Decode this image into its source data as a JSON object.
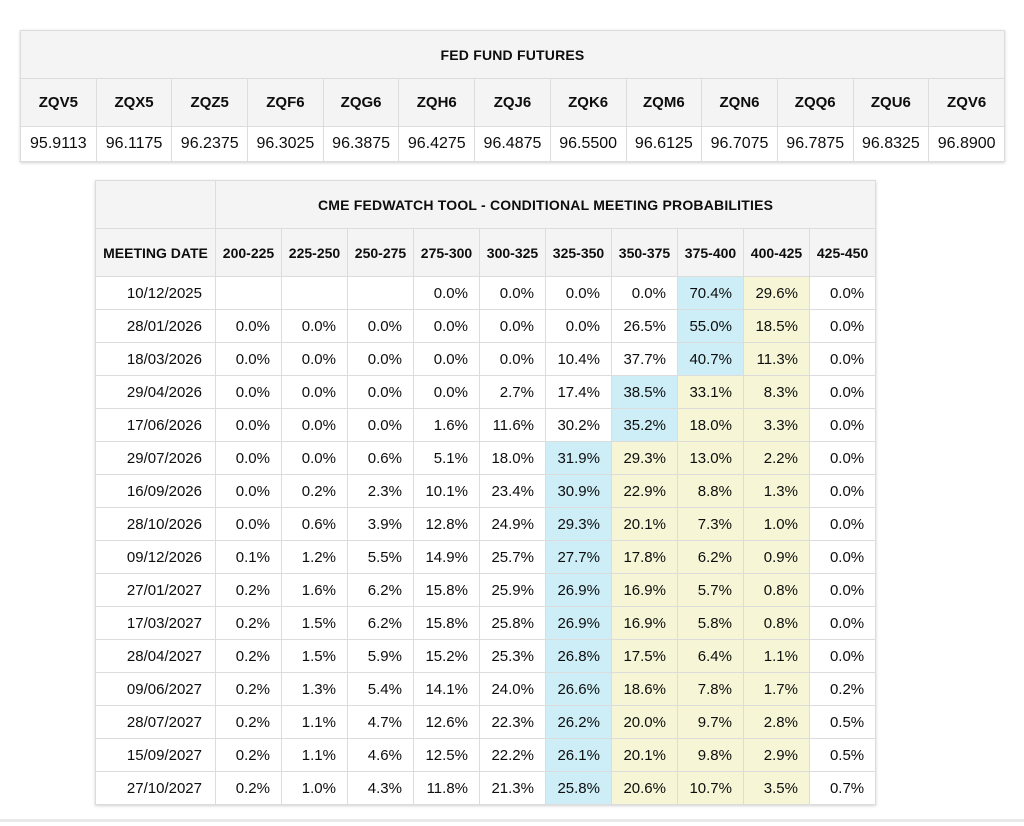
{
  "colors": {
    "header_bg": "#f4f4f5",
    "highlight_blue": "#cdeef7",
    "highlight_yellow": "#f6f6d7",
    "border": "#dcdcdc",
    "divider": "#e9e9ea"
  },
  "futures_table": {
    "title": "FED FUND FUTURES",
    "contracts": [
      {
        "code": "ZQV5",
        "price": "95.9113"
      },
      {
        "code": "ZQX5",
        "price": "96.1175"
      },
      {
        "code": "ZQZ5",
        "price": "96.2375"
      },
      {
        "code": "ZQF6",
        "price": "96.3025"
      },
      {
        "code": "ZQG6",
        "price": "96.3875"
      },
      {
        "code": "ZQH6",
        "price": "96.4275"
      },
      {
        "code": "ZQJ6",
        "price": "96.4875"
      },
      {
        "code": "ZQK6",
        "price": "96.5500"
      },
      {
        "code": "ZQM6",
        "price": "96.6125"
      },
      {
        "code": "ZQN6",
        "price": "96.7075"
      },
      {
        "code": "ZQQ6",
        "price": "96.7875"
      },
      {
        "code": "ZQU6",
        "price": "96.8325"
      },
      {
        "code": "ZQV6",
        "price": "96.8900"
      }
    ]
  },
  "fedwatch_table": {
    "title": "CME FEDWATCH TOOL - CONDITIONAL MEETING PROBABILITIES",
    "date_header": "MEETING DATE",
    "range_headers": [
      "200-225",
      "225-250",
      "250-275",
      "275-300",
      "300-325",
      "325-350",
      "350-375",
      "375-400",
      "400-425",
      "425-450"
    ],
    "rows": [
      {
        "date": "10/12/2025",
        "values": [
          "",
          "",
          "",
          "0.0%",
          "0.0%",
          "0.0%",
          "0.0%",
          "70.4%",
          "29.6%",
          "0.0%"
        ],
        "blue_col": 7,
        "yellow_cols": [
          8
        ]
      },
      {
        "date": "28/01/2026",
        "values": [
          "0.0%",
          "0.0%",
          "0.0%",
          "0.0%",
          "0.0%",
          "0.0%",
          "26.5%",
          "55.0%",
          "18.5%",
          "0.0%"
        ],
        "blue_col": 7,
        "yellow_cols": [
          8
        ]
      },
      {
        "date": "18/03/2026",
        "values": [
          "0.0%",
          "0.0%",
          "0.0%",
          "0.0%",
          "0.0%",
          "10.4%",
          "37.7%",
          "40.7%",
          "11.3%",
          "0.0%"
        ],
        "blue_col": 7,
        "yellow_cols": [
          8
        ]
      },
      {
        "date": "29/04/2026",
        "values": [
          "0.0%",
          "0.0%",
          "0.0%",
          "0.0%",
          "2.7%",
          "17.4%",
          "38.5%",
          "33.1%",
          "8.3%",
          "0.0%"
        ],
        "blue_col": 6,
        "yellow_cols": [
          7,
          8
        ]
      },
      {
        "date": "17/06/2026",
        "values": [
          "0.0%",
          "0.0%",
          "0.0%",
          "1.6%",
          "11.6%",
          "30.2%",
          "35.2%",
          "18.0%",
          "3.3%",
          "0.0%"
        ],
        "blue_col": 6,
        "yellow_cols": [
          7,
          8
        ]
      },
      {
        "date": "29/07/2026",
        "values": [
          "0.0%",
          "0.0%",
          "0.6%",
          "5.1%",
          "18.0%",
          "31.9%",
          "29.3%",
          "13.0%",
          "2.2%",
          "0.0%"
        ],
        "blue_col": 5,
        "yellow_cols": [
          6,
          7,
          8
        ]
      },
      {
        "date": "16/09/2026",
        "values": [
          "0.0%",
          "0.2%",
          "2.3%",
          "10.1%",
          "23.4%",
          "30.9%",
          "22.9%",
          "8.8%",
          "1.3%",
          "0.0%"
        ],
        "blue_col": 5,
        "yellow_cols": [
          6,
          7,
          8
        ]
      },
      {
        "date": "28/10/2026",
        "values": [
          "0.0%",
          "0.6%",
          "3.9%",
          "12.8%",
          "24.9%",
          "29.3%",
          "20.1%",
          "7.3%",
          "1.0%",
          "0.0%"
        ],
        "blue_col": 5,
        "yellow_cols": [
          6,
          7,
          8
        ]
      },
      {
        "date": "09/12/2026",
        "values": [
          "0.1%",
          "1.2%",
          "5.5%",
          "14.9%",
          "25.7%",
          "27.7%",
          "17.8%",
          "6.2%",
          "0.9%",
          "0.0%"
        ],
        "blue_col": 5,
        "yellow_cols": [
          6,
          7,
          8
        ]
      },
      {
        "date": "27/01/2027",
        "values": [
          "0.2%",
          "1.6%",
          "6.2%",
          "15.8%",
          "25.9%",
          "26.9%",
          "16.9%",
          "5.7%",
          "0.8%",
          "0.0%"
        ],
        "blue_col": 5,
        "yellow_cols": [
          6,
          7,
          8
        ]
      },
      {
        "date": "17/03/2027",
        "values": [
          "0.2%",
          "1.5%",
          "6.2%",
          "15.8%",
          "25.8%",
          "26.9%",
          "16.9%",
          "5.8%",
          "0.8%",
          "0.0%"
        ],
        "blue_col": 5,
        "yellow_cols": [
          6,
          7,
          8
        ]
      },
      {
        "date": "28/04/2027",
        "values": [
          "0.2%",
          "1.5%",
          "5.9%",
          "15.2%",
          "25.3%",
          "26.8%",
          "17.5%",
          "6.4%",
          "1.1%",
          "0.0%"
        ],
        "blue_col": 5,
        "yellow_cols": [
          6,
          7,
          8
        ]
      },
      {
        "date": "09/06/2027",
        "values": [
          "0.2%",
          "1.3%",
          "5.4%",
          "14.1%",
          "24.0%",
          "26.6%",
          "18.6%",
          "7.8%",
          "1.7%",
          "0.2%"
        ],
        "blue_col": 5,
        "yellow_cols": [
          6,
          7,
          8
        ]
      },
      {
        "date": "28/07/2027",
        "values": [
          "0.2%",
          "1.1%",
          "4.7%",
          "12.6%",
          "22.3%",
          "26.2%",
          "20.0%",
          "9.7%",
          "2.8%",
          "0.5%"
        ],
        "blue_col": 5,
        "yellow_cols": [
          6,
          7,
          8
        ]
      },
      {
        "date": "15/09/2027",
        "values": [
          "0.2%",
          "1.1%",
          "4.6%",
          "12.5%",
          "22.2%",
          "26.1%",
          "20.1%",
          "9.8%",
          "2.9%",
          "0.5%"
        ],
        "blue_col": 5,
        "yellow_cols": [
          6,
          7,
          8
        ]
      },
      {
        "date": "27/10/2027",
        "values": [
          "0.2%",
          "1.0%",
          "4.3%",
          "11.8%",
          "21.3%",
          "25.8%",
          "20.6%",
          "10.7%",
          "3.5%",
          "0.7%"
        ],
        "blue_col": 5,
        "yellow_cols": [
          6,
          7,
          8
        ]
      }
    ]
  }
}
